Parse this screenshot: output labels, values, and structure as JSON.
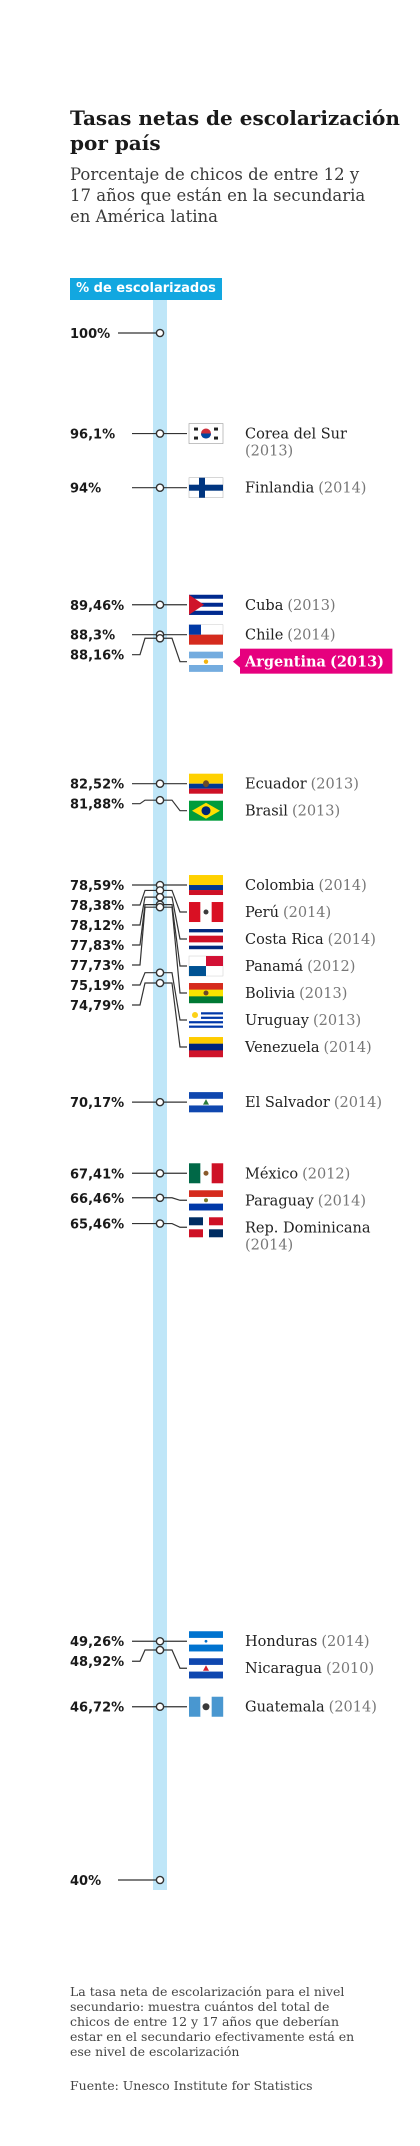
{
  "header": {
    "title": "Tasas netas de escolarización por país",
    "subtitle": "Porcentaje de chicos de entre 12 y 17 años que están en la secundaria en América latina"
  },
  "chart_data": {
    "type": "dot-axis",
    "axis_label": "% de escolarizados",
    "ylim": [
      40,
      100
    ],
    "endpoints": [
      {
        "value": 100,
        "label": "100%"
      },
      {
        "value": 40,
        "label": "40%"
      }
    ],
    "highlight_color": "#e6007e",
    "bar_color": "#bfe6f8",
    "items": [
      {
        "value": 96.1,
        "label": "96,1%",
        "country": "Corea del Sur",
        "year": "(2013)",
        "flag": "korea"
      },
      {
        "value": 94,
        "label": "94%",
        "country": "Finlandia",
        "year": "(2014)",
        "flag": "finland"
      },
      {
        "value": 89.46,
        "label": "89,46%",
        "country": "Cuba",
        "year": "(2013)",
        "flag": "cuba"
      },
      {
        "value": 88.3,
        "label": "88,3%",
        "country": "Chile",
        "year": "(2014)",
        "flag": "chile"
      },
      {
        "value": 88.16,
        "label": "88,16%",
        "country": "Argentina",
        "year": "(2013)",
        "flag": "argentina",
        "highlight": true
      },
      {
        "value": 82.52,
        "label": "82,52%",
        "country": "Ecuador",
        "year": "(2013)",
        "flag": "ecuador"
      },
      {
        "value": 81.88,
        "label": "81,88%",
        "country": "Brasil",
        "year": "(2013)",
        "flag": "brasil"
      },
      {
        "value": 78.59,
        "label": "78,59%",
        "country": "Colombia",
        "year": "(2014)",
        "flag": "colombia"
      },
      {
        "value": 78.38,
        "label": "78,38%",
        "country": "Perú",
        "year": "(2014)",
        "flag": "peru"
      },
      {
        "value": 78.12,
        "label": "78,12%",
        "country": "Costa Rica",
        "year": "(2014)",
        "flag": "costarica"
      },
      {
        "value": 77.83,
        "label": "77,83%",
        "country": "Panamá",
        "year": "(2012)",
        "flag": "panama"
      },
      {
        "value": 77.73,
        "label": "77,73%",
        "country": "Bolivia",
        "year": "(2013)",
        "flag": "bolivia"
      },
      {
        "value": 75.19,
        "label": "75,19%",
        "country": "Uruguay",
        "year": "(2013)",
        "flag": "uruguay"
      },
      {
        "value": 74.79,
        "label": "74,79%",
        "country": "Venezuela",
        "year": "(2014)",
        "flag": "venezuela"
      },
      {
        "value": 70.17,
        "label": "70,17%",
        "country": "El Salvador",
        "year": "(2014)",
        "flag": "elsalvador"
      },
      {
        "value": 67.41,
        "label": "67,41%",
        "country": "México",
        "year": "(2012)",
        "flag": "mexico"
      },
      {
        "value": 66.46,
        "label": "66,46%",
        "country": "Paraguay",
        "year": "(2014)",
        "flag": "paraguay"
      },
      {
        "value": 65.46,
        "label": "65,46%",
        "country": "Rep. Dominicana",
        "year": "(2014)",
        "flag": "dominicana"
      },
      {
        "value": 49.26,
        "label": "49,26%",
        "country": "Honduras",
        "year": "(2014)",
        "flag": "honduras"
      },
      {
        "value": 48.92,
        "label": "48,92%",
        "country": "Nicaragua",
        "year": "(2010)",
        "flag": "nicaragua"
      },
      {
        "value": 46.72,
        "label": "46,72%",
        "country": "Guatemala",
        "year": "(2014)",
        "flag": "guatemala"
      }
    ]
  },
  "footer": {
    "note": "La tasa neta de escolarización para el nivel secundario: muestra cuántos del total de chicos de entre 12 y 17 años que deberían estar en el secundario efectivamente está en ese nivel de escolarización",
    "source": "Fuente: Unesco Institute for Statistics"
  }
}
